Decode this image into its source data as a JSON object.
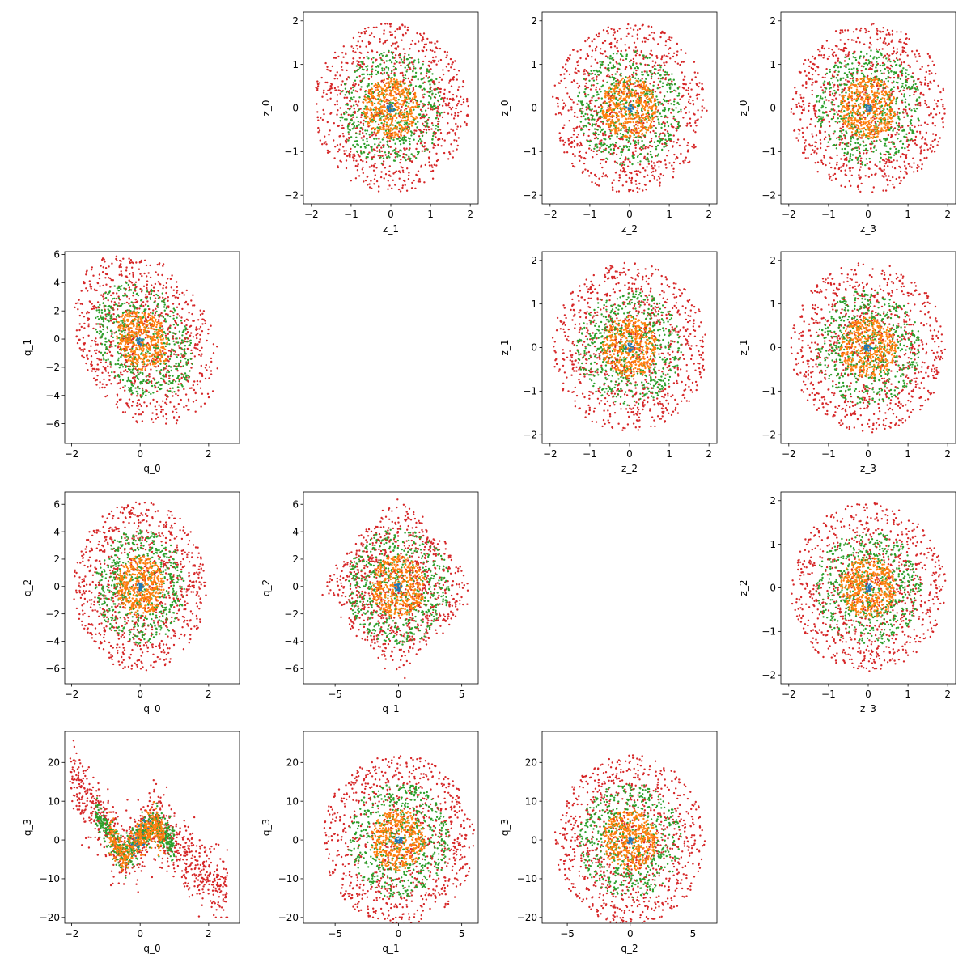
{
  "figure": {
    "colors": {
      "inner": "#1f77b4",
      "mid": "#ff7f0e",
      "ring2": "#2ca02c",
      "outer": "#d62728"
    }
  },
  "chart_data": [
    {
      "type": "scatter",
      "row": 0,
      "col": 1,
      "xlabel": "z_1",
      "ylabel": "z_0",
      "xlim": [
        -2.2,
        2.2
      ],
      "ylim": [
        -2.2,
        2.2
      ],
      "xticks": [
        -2,
        -1,
        0,
        1,
        2
      ],
      "yticks": [
        -2,
        -1,
        0,
        1,
        2
      ],
      "shape": "disk",
      "center": [
        0,
        0
      ],
      "spread": [
        1.95,
        1.95
      ],
      "series": [
        {
          "color": "#d62728",
          "band": [
            0,
            1.0
          ]
        },
        {
          "color": "#2ca02c",
          "band": [
            0,
            0.68
          ]
        },
        {
          "color": "#ff7f0e",
          "band": [
            0,
            0.36
          ]
        },
        {
          "color": "#1f77b4",
          "band": [
            0,
            0.05
          ]
        }
      ]
    },
    {
      "type": "scatter",
      "row": 0,
      "col": 2,
      "xlabel": "z_2",
      "ylabel": "z_0",
      "xlim": [
        -2.2,
        2.2
      ],
      "ylim": [
        -2.2,
        2.2
      ],
      "xticks": [
        -2,
        -1,
        0,
        1,
        2
      ],
      "yticks": [
        -2,
        -1,
        0,
        1,
        2
      ],
      "shape": "disk",
      "center": [
        0,
        0
      ],
      "spread": [
        1.95,
        1.95
      ],
      "series": [
        {
          "color": "#d62728",
          "band": [
            0,
            1.0
          ]
        },
        {
          "color": "#2ca02c",
          "band": [
            0,
            0.68
          ]
        },
        {
          "color": "#ff7f0e",
          "band": [
            0,
            0.36
          ]
        },
        {
          "color": "#1f77b4",
          "band": [
            0,
            0.05
          ]
        }
      ]
    },
    {
      "type": "scatter",
      "row": 0,
      "col": 3,
      "xlabel": "z_3",
      "ylabel": "z_0",
      "xlim": [
        -2.2,
        2.2
      ],
      "ylim": [
        -2.2,
        2.2
      ],
      "xticks": [
        -2,
        -1,
        0,
        1,
        2
      ],
      "yticks": [
        -2,
        -1,
        0,
        1,
        2
      ],
      "shape": "disk",
      "center": [
        0,
        0
      ],
      "spread": [
        1.95,
        1.95
      ],
      "series": [
        {
          "color": "#d62728",
          "band": [
            0,
            1.0
          ]
        },
        {
          "color": "#2ca02c",
          "band": [
            0,
            0.68
          ]
        },
        {
          "color": "#ff7f0e",
          "band": [
            0,
            0.36
          ]
        },
        {
          "color": "#1f77b4",
          "band": [
            0,
            0.05
          ]
        }
      ]
    },
    {
      "type": "scatter",
      "row": 1,
      "col": 0,
      "xlabel": "q_0",
      "ylabel": "q_1",
      "xlim": [
        -2.2,
        2.9
      ],
      "ylim": [
        -7.4,
        6.2
      ],
      "xticks": [
        -2,
        0,
        2
      ],
      "yticks": [
        -6,
        -4,
        -2,
        0,
        2,
        4,
        6
      ],
      "shape": "blob",
      "center": [
        0,
        -0.2
      ],
      "spread": [
        1.95,
        5.8
      ],
      "series": [
        {
          "color": "#d62728",
          "band": [
            0,
            1.0
          ]
        },
        {
          "color": "#2ca02c",
          "band": [
            0,
            0.68
          ]
        },
        {
          "color": "#ff7f0e",
          "band": [
            0,
            0.36
          ]
        },
        {
          "color": "#1f77b4",
          "band": [
            0,
            0.05
          ]
        }
      ]
    },
    {
      "type": "scatter",
      "row": 1,
      "col": 2,
      "xlabel": "z_2",
      "ylabel": "z_1",
      "xlim": [
        -2.2,
        2.2
      ],
      "ylim": [
        -2.2,
        2.2
      ],
      "xticks": [
        -2,
        -1,
        0,
        1,
        2
      ],
      "yticks": [
        -2,
        -1,
        0,
        1,
        2
      ],
      "shape": "disk",
      "center": [
        0,
        0
      ],
      "spread": [
        1.95,
        1.95
      ],
      "series": [
        {
          "color": "#d62728",
          "band": [
            0,
            1.0
          ]
        },
        {
          "color": "#2ca02c",
          "band": [
            0,
            0.68
          ]
        },
        {
          "color": "#ff7f0e",
          "band": [
            0,
            0.36
          ]
        },
        {
          "color": "#1f77b4",
          "band": [
            0,
            0.05
          ]
        }
      ]
    },
    {
      "type": "scatter",
      "row": 1,
      "col": 3,
      "xlabel": "z_3",
      "ylabel": "z_1",
      "xlim": [
        -2.2,
        2.2
      ],
      "ylim": [
        -2.2,
        2.2
      ],
      "xticks": [
        -2,
        -1,
        0,
        1,
        2
      ],
      "yticks": [
        -2,
        -1,
        0,
        1,
        2
      ],
      "shape": "disk",
      "center": [
        0,
        0
      ],
      "spread": [
        1.95,
        1.95
      ],
      "series": [
        {
          "color": "#d62728",
          "band": [
            0,
            1.0
          ]
        },
        {
          "color": "#2ca02c",
          "band": [
            0,
            0.68
          ]
        },
        {
          "color": "#ff7f0e",
          "band": [
            0,
            0.36
          ]
        },
        {
          "color": "#1f77b4",
          "band": [
            0,
            0.05
          ]
        }
      ]
    },
    {
      "type": "scatter",
      "row": 2,
      "col": 0,
      "xlabel": "q_0",
      "ylabel": "q_2",
      "xlim": [
        -2.2,
        2.9
      ],
      "ylim": [
        -7.1,
        6.9
      ],
      "xticks": [
        -2,
        0,
        2
      ],
      "yticks": [
        -6,
        -4,
        -2,
        0,
        2,
        4,
        6
      ],
      "shape": "disk",
      "center": [
        0,
        0
      ],
      "spread": [
        1.95,
        6.2
      ],
      "series": [
        {
          "color": "#d62728",
          "band": [
            0,
            1.0
          ]
        },
        {
          "color": "#2ca02c",
          "band": [
            0,
            0.68
          ]
        },
        {
          "color": "#ff7f0e",
          "band": [
            0,
            0.36
          ]
        },
        {
          "color": "#1f77b4",
          "band": [
            0,
            0.05
          ]
        }
      ]
    },
    {
      "type": "scatter",
      "row": 2,
      "col": 1,
      "xlabel": "q_1",
      "ylabel": "q_2",
      "xlim": [
        -7.5,
        6.3
      ],
      "ylim": [
        -7.1,
        6.9
      ],
      "xticks": [
        -5,
        0,
        5
      ],
      "yticks": [
        -6,
        -4,
        -2,
        0,
        2,
        4,
        6
      ],
      "shape": "diamond",
      "center": [
        0,
        0
      ],
      "spread": [
        6.0,
        6.3
      ],
      "series": [
        {
          "color": "#d62728",
          "band": [
            0,
            1.0
          ]
        },
        {
          "color": "#2ca02c",
          "band": [
            0,
            0.68
          ]
        },
        {
          "color": "#ff7f0e",
          "band": [
            0,
            0.36
          ]
        },
        {
          "color": "#1f77b4",
          "band": [
            0,
            0.05
          ]
        }
      ]
    },
    {
      "type": "scatter",
      "row": 2,
      "col": 3,
      "xlabel": "z_3",
      "ylabel": "z_2",
      "xlim": [
        -2.2,
        2.2
      ],
      "ylim": [
        -2.2,
        2.2
      ],
      "xticks": [
        -2,
        -1,
        0,
        1,
        2
      ],
      "yticks": [
        -2,
        -1,
        0,
        1,
        2
      ],
      "shape": "disk",
      "center": [
        0,
        0
      ],
      "spread": [
        1.95,
        1.95
      ],
      "series": [
        {
          "color": "#d62728",
          "band": [
            0,
            1.0
          ]
        },
        {
          "color": "#2ca02c",
          "band": [
            0,
            0.68
          ]
        },
        {
          "color": "#ff7f0e",
          "band": [
            0,
            0.36
          ]
        },
        {
          "color": "#1f77b4",
          "band": [
            0,
            0.05
          ]
        }
      ]
    },
    {
      "type": "scatter",
      "row": 3,
      "col": 0,
      "xlabel": "q_0",
      "ylabel": "q_3",
      "xlim": [
        -2.2,
        2.9
      ],
      "ylim": [
        -21.5,
        28
      ],
      "xticks": [
        -2,
        0,
        2
      ],
      "yticks": [
        -20,
        -10,
        0,
        10,
        20
      ],
      "shape": "wave",
      "center": [
        0,
        0
      ],
      "spread": [
        2.0,
        25
      ],
      "series": [
        {
          "color": "#d62728",
          "band": [
            0,
            1.0
          ]
        },
        {
          "color": "#2ca02c",
          "band": [
            0,
            0.68
          ]
        },
        {
          "color": "#ff7f0e",
          "band": [
            0,
            0.36
          ]
        },
        {
          "color": "#1f77b4",
          "band": [
            0,
            0.05
          ]
        }
      ]
    },
    {
      "type": "scatter",
      "row": 3,
      "col": 1,
      "xlabel": "q_1",
      "ylabel": "q_3",
      "xlim": [
        -7.5,
        6.3
      ],
      "ylim": [
        -21.5,
        28
      ],
      "xticks": [
        -5,
        0,
        5
      ],
      "yticks": [
        -20,
        -10,
        0,
        10,
        20
      ],
      "shape": "disk",
      "center": [
        0,
        0
      ],
      "spread": [
        6.0,
        22
      ],
      "series": [
        {
          "color": "#d62728",
          "band": [
            0,
            1.0
          ]
        },
        {
          "color": "#2ca02c",
          "band": [
            0,
            0.68
          ]
        },
        {
          "color": "#ff7f0e",
          "band": [
            0,
            0.36
          ]
        },
        {
          "color": "#1f77b4",
          "band": [
            0,
            0.05
          ]
        }
      ]
    },
    {
      "type": "scatter",
      "row": 3,
      "col": 2,
      "xlabel": "q_2",
      "ylabel": "q_3",
      "xlim": [
        -7.0,
        6.9
      ],
      "ylim": [
        -21.5,
        28
      ],
      "xticks": [
        -5,
        0,
        5
      ],
      "yticks": [
        -20,
        -10,
        0,
        10,
        20
      ],
      "shape": "disk",
      "center": [
        0,
        0
      ],
      "spread": [
        6.0,
        22
      ],
      "series": [
        {
          "color": "#d62728",
          "band": [
            0,
            1.0
          ]
        },
        {
          "color": "#2ca02c",
          "band": [
            0,
            0.68
          ]
        },
        {
          "color": "#ff7f0e",
          "band": [
            0,
            0.36
          ]
        },
        {
          "color": "#1f77b4",
          "band": [
            0,
            0.05
          ]
        }
      ]
    }
  ]
}
